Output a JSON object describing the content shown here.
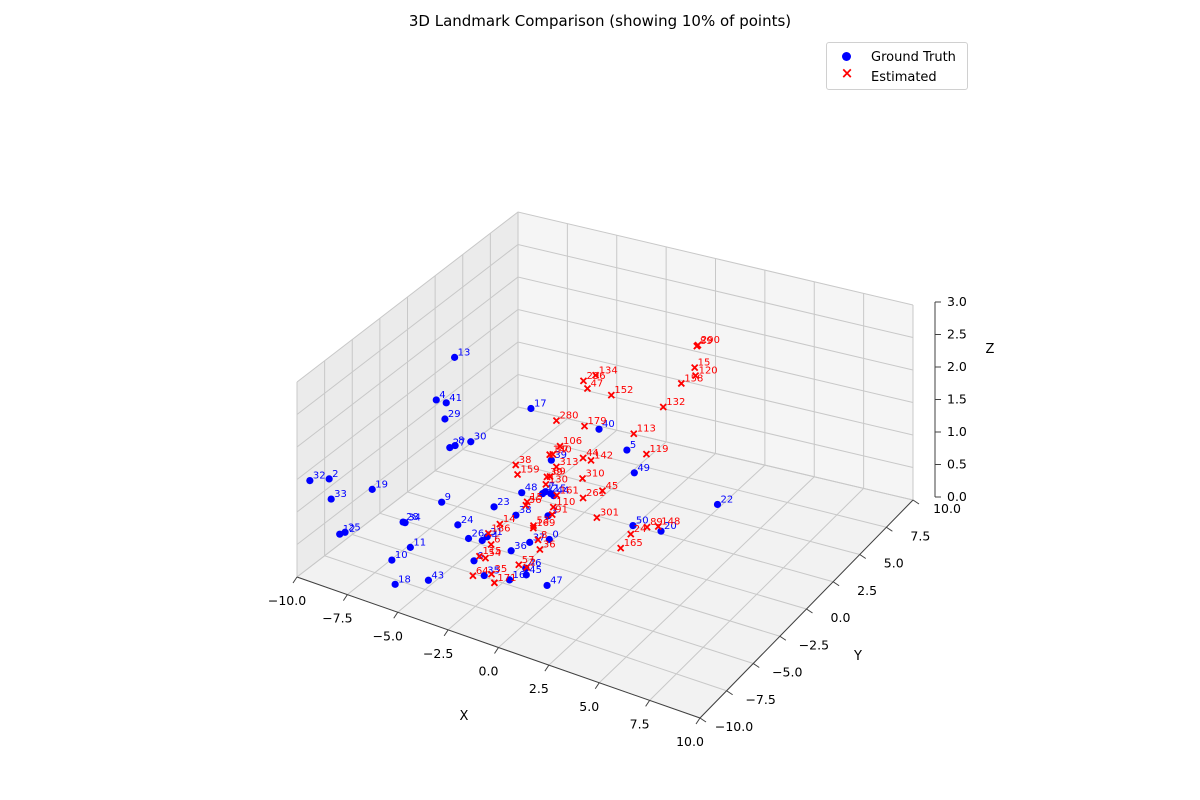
{
  "chart_data": {
    "type": "scatter",
    "title": "3D Landmark Comparison (showing 10% of points)",
    "xlabel": "X",
    "ylabel": "Y",
    "zlabel": "Z",
    "xlim": [
      -10,
      10
    ],
    "ylim": [
      -10,
      10
    ],
    "zlim": [
      0,
      3
    ],
    "x_ticks": [
      "−10.0",
      "−7.5",
      "−5.0",
      "−2.5",
      "0.0",
      "2.5",
      "5.0",
      "7.5",
      "10.0"
    ],
    "y_ticks": [
      "−10.0",
      "−7.5",
      "−5.0",
      "−2.5",
      "0.0",
      "2.5",
      "5.0",
      "7.5",
      "10.0"
    ],
    "z_ticks": [
      "0.0",
      "0.5",
      "1.0",
      "1.5",
      "2.0",
      "2.5",
      "3.0"
    ],
    "grid": true,
    "legend_position": "top-right",
    "series": [
      {
        "name": "Ground Truth",
        "color": "#0000ff",
        "marker": "circle",
        "points": [
          {
            "label": "13",
            "x": -8.8,
            "y": 2.1,
            "z": 1.9
          },
          {
            "label": "41",
            "x": -8.5,
            "y": 0.8,
            "z": 1.4
          },
          {
            "label": "4",
            "x": -9.0,
            "y": 0.8,
            "z": 1.4
          },
          {
            "label": "29",
            "x": -8.4,
            "y": 0.5,
            "z": 1.2
          },
          {
            "label": "30",
            "x": -7.6,
            "y": 1.4,
            "z": 0.8
          },
          {
            "label": "8",
            "x": -8.0,
            "y": 0.7,
            "z": 0.8
          },
          {
            "label": "27",
            "x": -8.1,
            "y": 0.4,
            "z": 0.8
          },
          {
            "label": "2",
            "x": -9.5,
            "y": -8.0,
            "z": 1.3
          },
          {
            "label": "32",
            "x": -9.8,
            "y": -9.2,
            "z": 1.4
          },
          {
            "label": "33",
            "x": -9.4,
            "y": -8.0,
            "z": 1.0
          },
          {
            "label": "19",
            "x": -8.4,
            "y": -6.1,
            "z": 1.0
          },
          {
            "label": "9",
            "x": -6.8,
            "y": -2.7,
            "z": 0.5
          },
          {
            "label": "48",
            "x": -4.0,
            "y": -0.5,
            "z": 0.6
          },
          {
            "label": "23",
            "x": -4.4,
            "y": -2.3,
            "z": 0.6
          },
          {
            "label": "24",
            "x": -5.5,
            "y": -3.6,
            "z": 0.4
          },
          {
            "label": "34",
            "x": -7.2,
            "y": -5.3,
            "z": 0.5
          },
          {
            "label": "28",
            "x": -7.3,
            "y": -5.3,
            "z": 0.5
          },
          {
            "label": "26",
            "x": -4.8,
            "y": -3.9,
            "z": 0.3
          },
          {
            "label": "38",
            "x": -3.8,
            "y": -1.4,
            "z": 0.4
          },
          {
            "label": "31",
            "x": -4.2,
            "y": -3.3,
            "z": 0.3
          },
          {
            "label": "14",
            "x": -4.5,
            "y": -3.2,
            "z": 0.2
          },
          {
            "label": "11",
            "x": -6.5,
            "y": -6.1,
            "z": 0.3
          },
          {
            "label": "6",
            "x": -4.2,
            "y": -4.5,
            "z": 0.1
          },
          {
            "label": "25",
            "x": -8.6,
            "y": -8.2,
            "z": 0.6
          },
          {
            "label": "12",
            "x": -8.7,
            "y": -8.5,
            "z": 0.6
          },
          {
            "label": "10",
            "x": -6.6,
            "y": -7.6,
            "z": 0.3
          },
          {
            "label": "43",
            "x": -5.0,
            "y": -7.2,
            "z": 0.1
          },
          {
            "label": "18",
            "x": -6.0,
            "y": -8.4,
            "z": 0.1
          },
          {
            "label": "35",
            "x": -3.2,
            "y": -5.4,
            "z": 0.1
          },
          {
            "label": "16",
            "x": -2.1,
            "y": -5.1,
            "z": 0.1
          },
          {
            "label": "47",
            "x": -0.5,
            "y": -4.6,
            "z": 0.1
          },
          {
            "label": "36",
            "x": -3.0,
            "y": -3.3,
            "z": 0.2
          },
          {
            "label": "37",
            "x": -2.4,
            "y": -2.7,
            "z": 0.3
          },
          {
            "label": "46",
            "x": -2.0,
            "y": -3.8,
            "z": 0.1
          },
          {
            "label": "0",
            "x": -1.8,
            "y": -2.0,
            "z": 0.3
          },
          {
            "label": "3",
            "x": -2.3,
            "y": -1.2,
            "z": 0.5
          },
          {
            "label": "44",
            "x": -2.4,
            "y": -0.5,
            "z": 0.7
          },
          {
            "label": "15",
            "x": -2.6,
            "y": -0.4,
            "z": 0.7
          },
          {
            "label": "42",
            "x": -2.9,
            "y": -0.6,
            "z": 0.7
          },
          {
            "label": "7",
            "x": -2.6,
            "y": -0.9,
            "z": 0.8
          },
          {
            "label": "39",
            "x": -2.9,
            "y": 0.2,
            "z": 1.1
          },
          {
            "label": "17",
            "x": -4.8,
            "y": 1.8,
            "z": 1.5
          },
          {
            "label": "40",
            "x": -1.6,
            "y": 2.2,
            "z": 1.4
          },
          {
            "label": "5",
            "x": -0.2,
            "y": 2.2,
            "z": 1.2
          },
          {
            "label": "49",
            "x": 0.5,
            "y": 1.6,
            "z": 1.0
          },
          {
            "label": "22",
            "x": 5.0,
            "y": 1.0,
            "z": 1.0
          },
          {
            "label": "50",
            "x": 1.3,
            "y": 0.0,
            "z": 0.5
          },
          {
            "label": "20",
            "x": 2.6,
            "y": 0.2,
            "z": 0.5
          },
          {
            "label": "45",
            "x": -1.7,
            "y": -4.3,
            "z": 0.1
          }
        ]
      },
      {
        "name": "Estimated",
        "color": "#ff0000",
        "marker": "x",
        "points": [
          {
            "label": "290",
            "x": 2.5,
            "y": 3.8,
            "z": 2.8
          },
          {
            "label": "89",
            "x": 2.5,
            "y": 3.7,
            "z": 2.8
          },
          {
            "label": "15",
            "x": 2.5,
            "y": 3.5,
            "z": 2.5
          },
          {
            "label": "120",
            "x": 2.6,
            "y": 3.4,
            "z": 2.4
          },
          {
            "label": "158",
            "x": 2.1,
            "y": 3.0,
            "z": 2.3
          },
          {
            "label": "134",
            "x": -2.1,
            "y": 2.8,
            "z": 2.1
          },
          {
            "label": "296",
            "x": -2.6,
            "y": 2.6,
            "z": 2.0
          },
          {
            "label": "47",
            "x": -2.4,
            "y": 2.6,
            "z": 1.9
          },
          {
            "label": "152",
            "x": -1.2,
            "y": 2.6,
            "z": 1.9
          },
          {
            "label": "132",
            "x": 1.3,
            "y": 2.8,
            "z": 1.9
          },
          {
            "label": "280",
            "x": -3.3,
            "y": 1.4,
            "z": 1.5
          },
          {
            "label": "179",
            "x": -2.0,
            "y": 1.6,
            "z": 1.5
          },
          {
            "label": "113",
            "x": 0.2,
            "y": 2.1,
            "z": 1.5
          },
          {
            "label": "119",
            "x": 1.0,
            "y": 1.8,
            "z": 1.3
          },
          {
            "label": "106",
            "x": -2.9,
            "y": 1.0,
            "z": 1.2
          },
          {
            "label": "17",
            "x": -3.1,
            "y": 0.7,
            "z": 1.1
          },
          {
            "label": "140",
            "x": -3.2,
            "y": 0.6,
            "z": 1.1
          },
          {
            "label": "44",
            "x": -1.8,
            "y": 1.1,
            "z": 1.1
          },
          {
            "label": "142",
            "x": -1.4,
            "y": 1.1,
            "z": 1.1
          },
          {
            "label": "313",
            "x": -2.7,
            "y": 0.3,
            "z": 1.0
          },
          {
            "label": "38",
            "x": -4.3,
            "y": -0.5,
            "z": 1.0
          },
          {
            "label": "159",
            "x": -4.1,
            "y": -0.7,
            "z": 0.9
          },
          {
            "label": "310",
            "x": -1.5,
            "y": 0.5,
            "z": 0.9
          },
          {
            "label": "69",
            "x": -2.8,
            "y": -0.1,
            "z": 0.9
          },
          {
            "label": "39",
            "x": -2.9,
            "y": -0.2,
            "z": 0.9
          },
          {
            "label": "130",
            "x": -2.9,
            "y": -0.3,
            "z": 0.8
          },
          {
            "label": "45",
            "x": -0.5,
            "y": 0.5,
            "z": 0.8
          },
          {
            "label": "161",
            "x": -2.3,
            "y": -0.4,
            "z": 0.7
          },
          {
            "label": "261",
            "x": -1.2,
            "y": 0.0,
            "z": 0.7
          },
          {
            "label": "15",
            "x": -3.4,
            "y": -1.1,
            "z": 0.6
          },
          {
            "label": "56",
            "x": -3.3,
            "y": -1.4,
            "z": 0.6
          },
          {
            "label": "110",
            "x": -2.2,
            "y": -0.9,
            "z": 0.6
          },
          {
            "label": "91",
            "x": -2.2,
            "y": -1.0,
            "z": 0.5
          },
          {
            "label": "301",
            "x": -0.4,
            "y": -0.2,
            "z": 0.5
          },
          {
            "label": "14",
            "x": -4.0,
            "y": -2.5,
            "z": 0.4
          },
          {
            "label": "53",
            "x": -2.7,
            "y": -1.8,
            "z": 0.4
          },
          {
            "label": "169",
            "x": -2.6,
            "y": -2.0,
            "z": 0.4
          },
          {
            "label": "148",
            "x": 2.3,
            "y": 0.5,
            "z": 0.5
          },
          {
            "label": "89",
            "x": 1.9,
            "y": 0.2,
            "z": 0.5
          },
          {
            "label": "24",
            "x": 1.3,
            "y": -0.2,
            "z": 0.4
          },
          {
            "label": "186",
            "x": -4.3,
            "y": -3.0,
            "z": 0.3
          },
          {
            "label": "6",
            "x": -4.0,
            "y": -3.3,
            "z": 0.2
          },
          {
            "label": "8",
            "x": -2.2,
            "y": -2.3,
            "z": 0.3
          },
          {
            "label": "36",
            "x": -2.0,
            "y": -2.5,
            "z": 0.2
          },
          {
            "label": "115",
            "x": -4.2,
            "y": -4.0,
            "z": 0.1
          },
          {
            "label": "54",
            "x": -3.9,
            "y": -4.0,
            "z": 0.1
          },
          {
            "label": "165",
            "x": 1.5,
            "y": -1.5,
            "z": 0.4
          },
          {
            "label": "57",
            "x": -2.4,
            "y": -3.7,
            "z": 0.1
          },
          {
            "label": "2",
            "x": -2.0,
            "y": -3.7,
            "z": 0.1
          },
          {
            "label": "35",
            "x": -3.0,
            "y": -5.1,
            "z": 0.1
          },
          {
            "label": "64",
            "x": -3.6,
            "y": -5.7,
            "z": 0.1
          },
          {
            "label": "171",
            "x": -2.8,
            "y": -5.2,
            "z": 0.0
          }
        ]
      }
    ]
  }
}
